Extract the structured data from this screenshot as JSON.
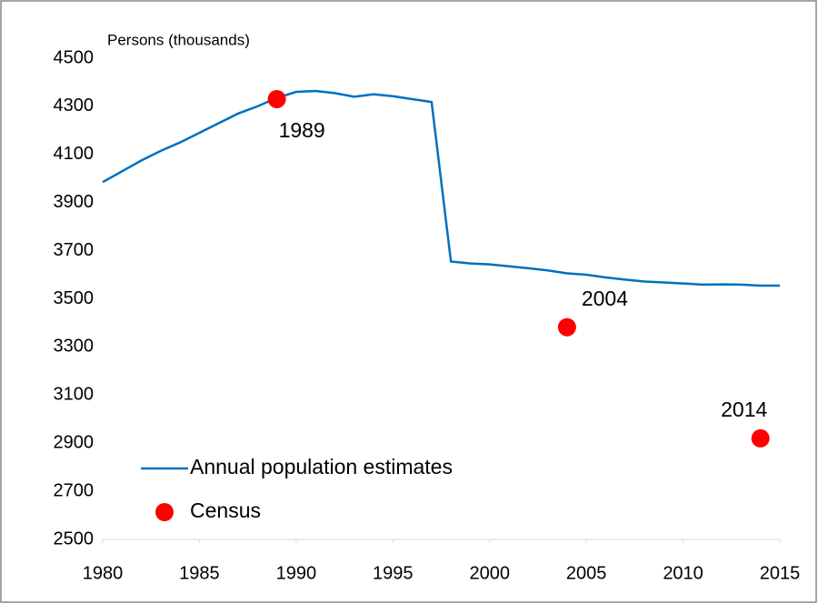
{
  "chart_data": {
    "type": "line",
    "y_label": "Persons (thousands)",
    "xlim": [
      1980,
      2015
    ],
    "xticks": [
      1980,
      1985,
      1990,
      1995,
      2000,
      2005,
      2010,
      2015
    ],
    "ylim": [
      2500,
      4500
    ],
    "yticks": [
      2500,
      2700,
      2900,
      3100,
      3300,
      3500,
      3700,
      3900,
      4100,
      4300,
      4500
    ],
    "grid": false,
    "legend": "lower left",
    "series": [
      {
        "name": "Annual population estimates",
        "color": "#0070c0",
        "mode": "line",
        "x": [
          1980,
          1981,
          1982,
          1983,
          1984,
          1985,
          1986,
          1987,
          1988,
          1989,
          1990,
          1991,
          1992,
          1993,
          1994,
          1995,
          1996,
          1997,
          1998,
          1999,
          2000,
          2001,
          2002,
          2003,
          2004,
          2005,
          2006,
          2007,
          2008,
          2009,
          2010,
          2011,
          2012,
          2013,
          2014,
          2015
        ],
        "values": [
          3985,
          4030,
          4075,
          4115,
          4150,
          4190,
          4230,
          4270,
          4300,
          4335,
          4360,
          4364,
          4355,
          4340,
          4350,
          4342,
          4330,
          4318,
          3655,
          3647,
          3643,
          3635,
          3627,
          3618,
          3606,
          3600,
          3589,
          3580,
          3572,
          3568,
          3564,
          3559,
          3560,
          3559,
          3555,
          3555
        ]
      },
      {
        "name": "Census",
        "color": "#ff0000",
        "mode": "markers",
        "x": [
          1989,
          2004,
          2014
        ],
        "values": [
          4330,
          3382,
          2920
        ]
      }
    ]
  }
}
